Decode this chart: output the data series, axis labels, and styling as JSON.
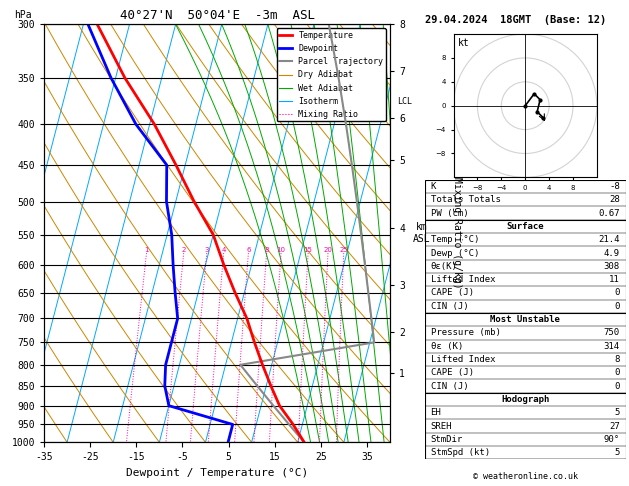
{
  "title_left": "40°27'N  50°04'E  -3m  ASL",
  "title_right": "29.04.2024  18GMT  (Base: 12)",
  "xlabel": "Dewpoint / Temperature (°C)",
  "bg_color": "white",
  "pressure_levels": [
    300,
    350,
    400,
    450,
    500,
    550,
    600,
    650,
    700,
    750,
    800,
    850,
    900,
    950,
    1000
  ],
  "pressure_labels": [
    "300",
    "350",
    "400",
    "450",
    "500",
    "550",
    "600",
    "650",
    "700",
    "750",
    "800",
    "850",
    "900",
    "950",
    "1000"
  ],
  "x_min": -35,
  "x_max": 40,
  "p_min": 300,
  "p_max": 1000,
  "skew_factor": 45,
  "isotherm_color": "#00AAFF",
  "dry_adiabat_color": "#CC8800",
  "wet_adiabat_color": "#00AA00",
  "mixing_ratio_color": "#FF00AA",
  "temp_color": "#FF0000",
  "dewp_color": "#0000FF",
  "parcel_color": "#888888",
  "mixing_ratio_vals": [
    1,
    2,
    3,
    4,
    6,
    8,
    10,
    15,
    20,
    25
  ],
  "km_p_vals": [
    800,
    700,
    600,
    500,
    400,
    350,
    300
  ],
  "km_labels": [
    "1",
    "2",
    "3",
    "4",
    "5",
    "6",
    "7"
  ],
  "km8_p": 258,
  "lcl_p": 800,
  "legend_items": [
    {
      "label": "Temperature",
      "color": "#FF0000",
      "lw": 2,
      "ls": "-"
    },
    {
      "label": "Dewpoint",
      "color": "#0000FF",
      "lw": 2,
      "ls": "-"
    },
    {
      "label": "Parcel Trajectory",
      "color": "#888888",
      "lw": 1.5,
      "ls": "-"
    },
    {
      "label": "Dry Adiabat",
      "color": "#CC8800",
      "lw": 0.8,
      "ls": "-"
    },
    {
      "label": "Wet Adiabat",
      "color": "#00AA00",
      "lw": 0.8,
      "ls": "-"
    },
    {
      "label": "Isotherm",
      "color": "#00AAFF",
      "lw": 0.8,
      "ls": "-"
    },
    {
      "label": "Mixing Ratio",
      "color": "#FF00AA",
      "lw": 0.8,
      "ls": ":"
    }
  ],
  "table_data": {
    "K": "-8",
    "Totals Totals": "28",
    "PW (cm)": "0.67",
    "Temp (C)": "21.4",
    "Dewp (C)": "4.9",
    "theta_e_K": "308",
    "Lifted Index": "11",
    "CAPE_s": "0",
    "CIN_s": "0",
    "Pressure (mb)": "750",
    "theta_e_mu": "314",
    "Lifted Index_mu": "8",
    "CAPE_mu": "0",
    "CIN_mu": "0",
    "EH": "5",
    "SREH": "27",
    "StmDir": "90°",
    "StmSpd": "5"
  },
  "hodo_winds_u": [
    0.0,
    1.5,
    2.5,
    2.0,
    3.0
  ],
  "hodo_winds_v": [
    0.0,
    2.0,
    1.0,
    -1.0,
    -2.0
  ],
  "storm_u": 3.5,
  "storm_v": -3.0
}
